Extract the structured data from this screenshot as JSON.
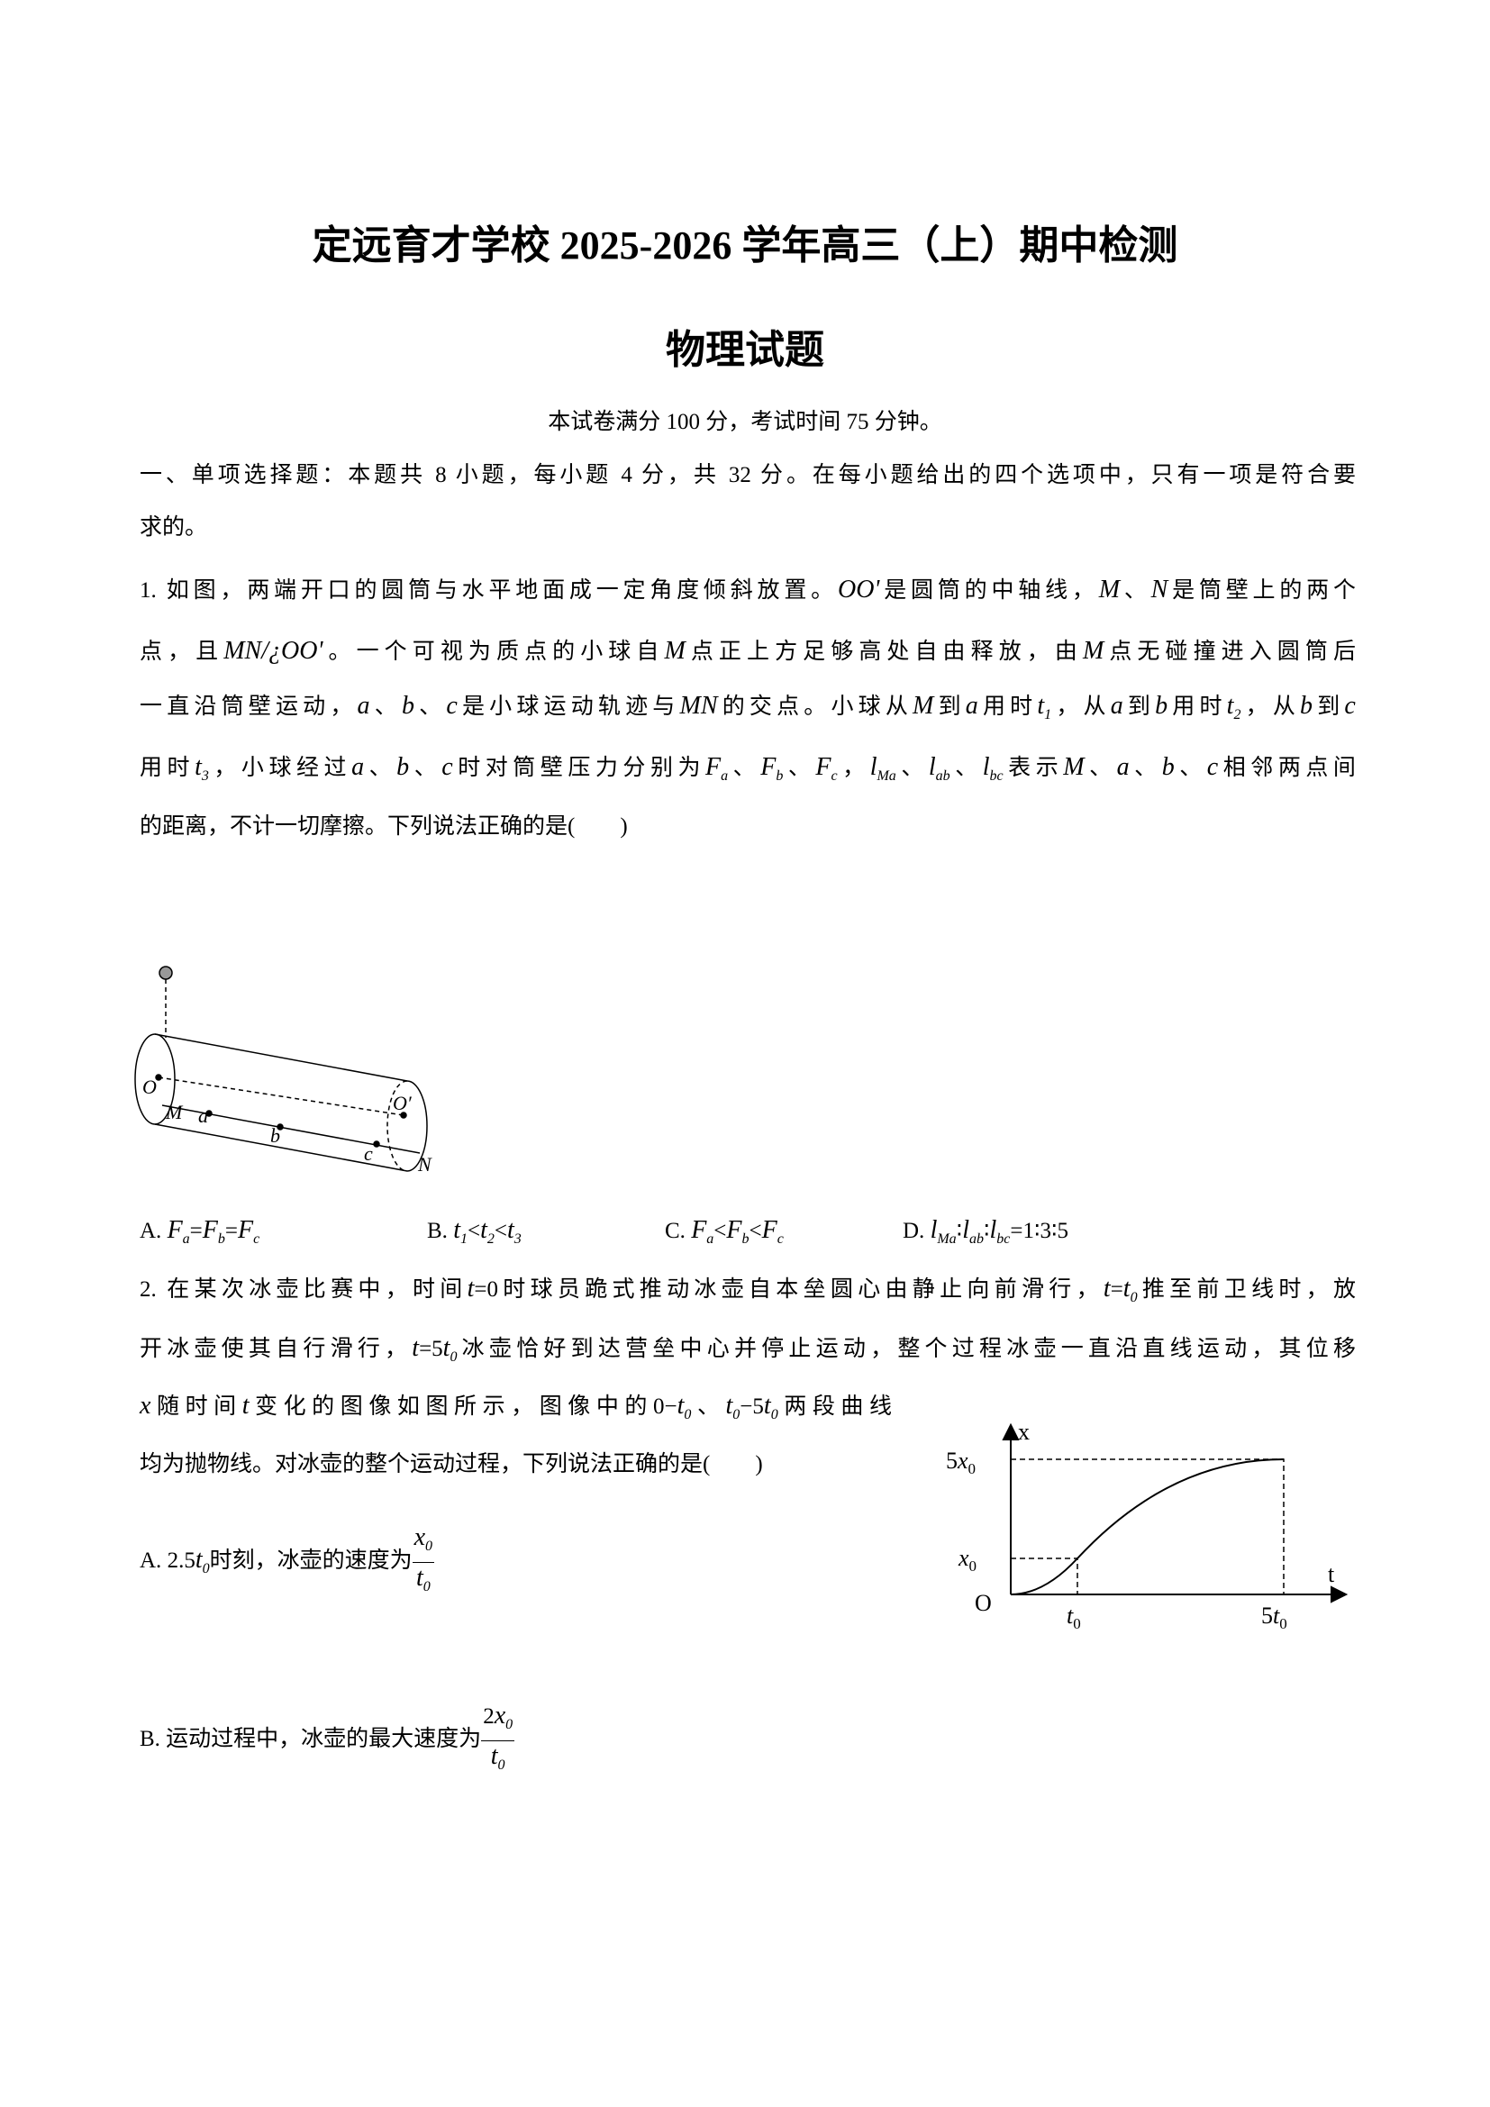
{
  "header": {
    "title": "定远育才学校 2025-2026 学年高三（上）期中检测",
    "subtitle": "物理试题",
    "note": "本试卷满分 100 分，考试时间 75 分钟。"
  },
  "section": {
    "lines": [
      [
        "一、单项选择题：本题共 8 小题，每小题 4 分，共 32 分。在每小题给出的四个选项中，只有一项是符合要"
      ],
      [
        "求的。"
      ]
    ]
  },
  "questions": [
    {
      "lines": [
        [
          "1. 如图，两端开口的圆筒与水平地面成一定角度倾斜放置。",
          {
            "m": "OO'"
          },
          "是圆筒的中轴线，",
          {
            "m": "M"
          },
          "、",
          {
            "m": "N"
          },
          "是筒壁上的两个"
        ],
        [
          "点，且",
          {
            "m": "MN/¿OO'"
          },
          "。一个可视为质点的小球自",
          {
            "m": "M"
          },
          "点正上方足够高处自由释放，由",
          {
            "m": "M"
          },
          "点无碰撞进入圆筒后"
        ],
        [
          "一直沿筒壁运动，",
          {
            "m": "a"
          },
          "、",
          {
            "m": "b"
          },
          "、",
          {
            "m": "c"
          },
          "是小球运动轨迹与",
          {
            "m": "MN"
          },
          "的交点。小球从",
          {
            "m": "M"
          },
          "到",
          {
            "m": "a"
          },
          "用时",
          {
            "m": "t",
            "sub": "1"
          },
          "，从",
          {
            "m": "a"
          },
          "到",
          {
            "m": "b"
          },
          "用时",
          {
            "m": "t",
            "sub": "2"
          },
          "，从",
          {
            "m": "b"
          },
          "到",
          {
            "m": "c"
          }
        ],
        [
          "用时",
          {
            "m": "t",
            "sub": "3"
          },
          "，小球经过",
          {
            "m": "a"
          },
          "、",
          {
            "m": "b"
          },
          "、",
          {
            "m": "c"
          },
          "时对筒壁压力分别为",
          {
            "m": "F",
            "sub": "a"
          },
          "、",
          {
            "m": "F",
            "sub": "b"
          },
          "、",
          {
            "m": "F",
            "sub": "c"
          },
          "，",
          {
            "m": "l",
            "sub": "Ma"
          },
          "、",
          {
            "m": "l",
            "sub": "ab"
          },
          "、",
          {
            "m": "l",
            "sub": "bc"
          },
          "表示",
          {
            "m": "M"
          },
          "、",
          {
            "m": "a"
          },
          "、",
          {
            "m": "b"
          },
          "、",
          {
            "m": "c"
          },
          "相邻两点间"
        ],
        [
          "的距离，不计一切摩擦。下列说法正确的是(　　)"
        ]
      ],
      "figure": {
        "labels": [
          "O",
          "O′",
          "M",
          "a",
          "b",
          "c",
          "N"
        ]
      },
      "options": [
        [
          "A. ",
          {
            "m": "F",
            "sub": "a"
          },
          "=",
          {
            "m": "F",
            "sub": "b"
          },
          "=",
          {
            "m": "F",
            "sub": "c"
          }
        ],
        [
          "B. ",
          {
            "m": "t",
            "sub": "1"
          },
          "<",
          {
            "m": "t",
            "sub": "2"
          },
          "<",
          {
            "m": "t",
            "sub": "3"
          }
        ],
        [
          "C. ",
          {
            "m": "F",
            "sub": "a"
          },
          "<",
          {
            "m": "F",
            "sub": "b"
          },
          "<",
          {
            "m": "F",
            "sub": "c"
          }
        ],
        [
          "D. ",
          {
            "m": "l",
            "sub": "Ma"
          },
          "∶",
          {
            "m": "l",
            "sub": "ab"
          },
          "∶",
          {
            "m": "l",
            "sub": "bc"
          },
          "=1∶3∶5"
        ]
      ]
    },
    {
      "lines": [
        [
          "2. 在某次冰壶比赛中，时间",
          {
            "m": "t"
          },
          "=0",
          "时球员跪式推动冰壶自本垒圆心由静止向前滑行，",
          {
            "m": "t"
          },
          "=",
          {
            "m": "t",
            "sub": "0"
          },
          "推至前卫线时，放"
        ],
        [
          "开冰壶使其自行滑行，",
          {
            "m": "t"
          },
          "=5",
          {
            "m": "t",
            "sub": "0"
          },
          "冰壶恰好到达营垒中心并停止运动，整个过程冰壶一直沿直线运动，其位移"
        ],
        [
          {
            "m": "x"
          },
          "随时间",
          {
            "m": "t"
          },
          "变化的图像如图所示，图像中的",
          "0−",
          {
            "m": "t",
            "sub": "0"
          },
          "、",
          {
            "m": "t",
            "sub": "0"
          },
          "−5",
          {
            "m": "t",
            "sub": "0"
          },
          "两段曲线"
        ],
        [
          "均为抛物线。对冰壶的整个运动过程，下列说法正确的是(　　)"
        ]
      ],
      "figure": {
        "labels": [
          [
            "x"
          ],
          [
            "5",
            {
              "m": "x",
              "sub": "0"
            }
          ],
          [
            {
              "m": "x",
              "sub": "0"
            }
          ],
          [
            "O"
          ],
          [
            {
              "m": "t",
              "sub": "0"
            }
          ],
          [
            "5",
            {
              "m": "t",
              "sub": "0"
            }
          ],
          [
            "t"
          ]
        ]
      },
      "options": [
        [
          "A. ",
          "2.5",
          {
            "m": "t",
            "sub": "0"
          },
          "时刻，冰壶的速度为",
          {
            "frac": {
              "num": [
                {
                  "m": "x",
                  "sub": "0"
                }
              ],
              "den": [
                {
                  "m": "t",
                  "sub": "0"
                }
              ]
            }
          }
        ],
        [
          "B. 运动过程中，冰壶的最大速度为",
          {
            "frac": {
              "num": [
                "2",
                {
                  "m": "x",
                  "sub": "0"
                }
              ],
              "den": [
                {
                  "m": "t",
                  "sub": "0"
                }
              ]
            }
          }
        ]
      ]
    }
  ]
}
